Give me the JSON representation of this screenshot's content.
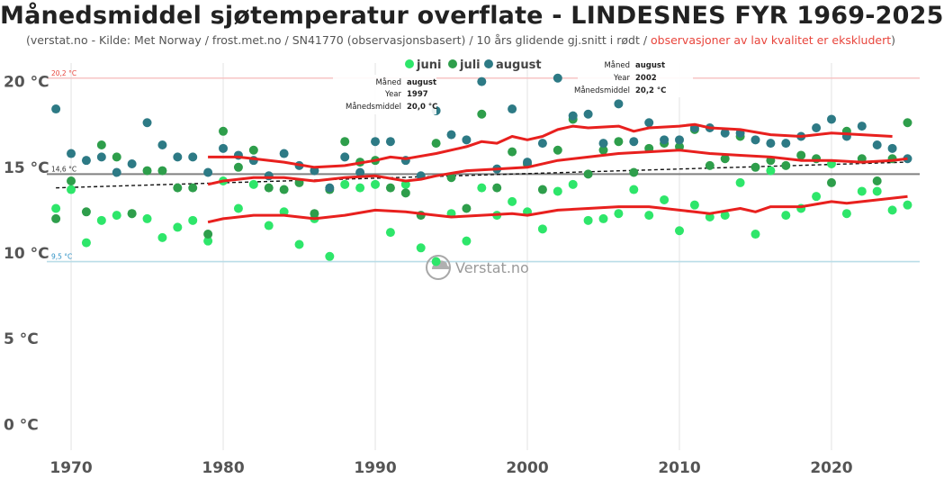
{
  "chart_data": {
    "type": "scatter",
    "title": "Månedsmiddel sjøtemperatur overflate - LINDESNES FYR 1969-2025",
    "subtitle": {
      "main": "(verstat.no - Kilde: Met Norway / frost.met.no / SN41770 (observasjonsbasert) / 10 års glidende gj.snitt i rødt / ",
      "warning": "observasjoner av lav kvalitet er ekskludert",
      "end": ")"
    },
    "xlim": [
      1968.4,
      2025.8
    ],
    "ylim": [
      -1.5,
      21.5
    ],
    "xticks": [
      1970,
      1980,
      1990,
      2000,
      2010,
      2020
    ],
    "yticks": [
      {
        "value": 0,
        "label": "0 °C"
      },
      {
        "value": 5,
        "label": "5 °C"
      },
      {
        "value": 10,
        "label": "10 °C"
      },
      {
        "value": 15,
        "label": "15 °C"
      },
      {
        "value": 20,
        "label": "20 °C"
      }
    ],
    "reference_lines": [
      {
        "value": 20.2,
        "label": "20,2 °C",
        "color": "#f7c4c4",
        "text_color": "#e8453c"
      },
      {
        "value": 14.6,
        "label": "14,6 °C",
        "color": "#808080",
        "text_color": "#333333"
      },
      {
        "value": 9.5,
        "label": "9,5 °C",
        "color": "#b9dde7",
        "text_color": "#2a8fc4"
      }
    ],
    "legend": [
      "juni",
      "juli",
      "august"
    ],
    "series": [
      {
        "name": "juni",
        "color": "#2ee66a",
        "points": [
          [
            1969,
            12.6
          ],
          [
            1970,
            13.7
          ],
          [
            1971,
            10.6
          ],
          [
            1972,
            11.9
          ],
          [
            1973,
            12.2
          ],
          [
            1974,
            12.3
          ],
          [
            1975,
            12.0
          ],
          [
            1976,
            10.9
          ],
          [
            1977,
            11.5
          ],
          [
            1978,
            11.9
          ],
          [
            1979,
            10.7
          ],
          [
            1980,
            14.2
          ],
          [
            1981,
            12.6
          ],
          [
            1982,
            14.0
          ],
          [
            1983,
            11.6
          ],
          [
            1984,
            12.4
          ],
          [
            1985,
            10.5
          ],
          [
            1986,
            12.0
          ],
          [
            1987,
            9.8
          ],
          [
            1988,
            14.0
          ],
          [
            1989,
            13.8
          ],
          [
            1990,
            14.0
          ],
          [
            1991,
            11.2
          ],
          [
            1992,
            14.0
          ],
          [
            1993,
            10.3
          ],
          [
            1994,
            9.5
          ],
          [
            1995,
            12.3
          ],
          [
            1996,
            10.7
          ],
          [
            1997,
            13.8
          ],
          [
            1998,
            12.2
          ],
          [
            1999,
            13.0
          ],
          [
            2000,
            12.4
          ],
          [
            2001,
            11.4
          ],
          [
            2002,
            13.6
          ],
          [
            2003,
            14.0
          ],
          [
            2004,
            11.9
          ],
          [
            2005,
            12.0
          ],
          [
            2006,
            12.3
          ],
          [
            2007,
            13.7
          ],
          [
            2008,
            12.2
          ],
          [
            2009,
            13.1
          ],
          [
            2010,
            11.3
          ],
          [
            2011,
            12.8
          ],
          [
            2012,
            12.1
          ],
          [
            2013,
            12.2
          ],
          [
            2014,
            14.1
          ],
          [
            2015,
            11.1
          ],
          [
            2016,
            14.8
          ],
          [
            2017,
            12.2
          ],
          [
            2018,
            12.6
          ],
          [
            2019,
            13.3
          ],
          [
            2020,
            15.2
          ],
          [
            2021,
            12.3
          ],
          [
            2022,
            13.6
          ],
          [
            2023,
            13.6
          ],
          [
            2024,
            12.5
          ],
          [
            2025,
            12.8
          ]
        ]
      },
      {
        "name": "juli",
        "color": "#2e9e4b",
        "points": [
          [
            1969,
            12.0
          ],
          [
            1970,
            14.2
          ],
          [
            1971,
            12.4
          ],
          [
            1972,
            16.3
          ],
          [
            1973,
            15.6
          ],
          [
            1974,
            12.3
          ],
          [
            1975,
            14.8
          ],
          [
            1976,
            14.8
          ],
          [
            1977,
            13.8
          ],
          [
            1978,
            13.8
          ],
          [
            1979,
            11.1
          ],
          [
            1980,
            17.1
          ],
          [
            1981,
            15.0
          ],
          [
            1982,
            16.0
          ],
          [
            1983,
            13.8
          ],
          [
            1984,
            13.7
          ],
          [
            1985,
            14.1
          ],
          [
            1986,
            12.3
          ],
          [
            1987,
            13.7
          ],
          [
            1988,
            16.5
          ],
          [
            1989,
            15.3
          ],
          [
            1990,
            15.4
          ],
          [
            1991,
            13.8
          ],
          [
            1992,
            13.5
          ],
          [
            1993,
            12.2
          ],
          [
            1994,
            16.4
          ],
          [
            1995,
            14.4
          ],
          [
            1996,
            12.6
          ],
          [
            1997,
            18.1
          ],
          [
            1998,
            13.8
          ],
          [
            1999,
            15.9
          ],
          [
            2000,
            15.2
          ],
          [
            2001,
            13.7
          ],
          [
            2002,
            16.0
          ],
          [
            2003,
            17.8
          ],
          [
            2004,
            14.6
          ],
          [
            2005,
            16.0
          ],
          [
            2006,
            16.5
          ],
          [
            2007,
            14.7
          ],
          [
            2008,
            16.1
          ],
          [
            2009,
            16.4
          ],
          [
            2010,
            16.2
          ],
          [
            2011,
            17.2
          ],
          [
            2012,
            15.1
          ],
          [
            2013,
            15.5
          ],
          [
            2014,
            16.8
          ],
          [
            2015,
            15.0
          ],
          [
            2016,
            15.4
          ],
          [
            2017,
            15.1
          ],
          [
            2018,
            15.7
          ],
          [
            2019,
            15.5
          ],
          [
            2020,
            14.1
          ],
          [
            2021,
            17.1
          ],
          [
            2022,
            15.5
          ],
          [
            2023,
            14.2
          ],
          [
            2024,
            15.5
          ],
          [
            2025,
            17.6
          ]
        ]
      },
      {
        "name": "august",
        "color": "#2d7a85",
        "points": [
          [
            1969,
            18.4
          ],
          [
            1970,
            15.8
          ],
          [
            1971,
            15.4
          ],
          [
            1972,
            15.6
          ],
          [
            1973,
            14.7
          ],
          [
            1974,
            15.2
          ],
          [
            1975,
            17.6
          ],
          [
            1976,
            16.3
          ],
          [
            1977,
            15.6
          ],
          [
            1978,
            15.6
          ],
          [
            1979,
            14.7
          ],
          [
            1980,
            16.1
          ],
          [
            1981,
            15.7
          ],
          [
            1982,
            15.4
          ],
          [
            1983,
            14.5
          ],
          [
            1984,
            15.8
          ],
          [
            1985,
            15.1
          ],
          [
            1986,
            14.8
          ],
          [
            1987,
            13.8
          ],
          [
            1988,
            15.6
          ],
          [
            1989,
            14.7
          ],
          [
            1990,
            16.5
          ],
          [
            1991,
            16.5
          ],
          [
            1992,
            15.4
          ],
          [
            1993,
            14.5
          ],
          [
            1994,
            18.3
          ],
          [
            1995,
            16.9
          ],
          [
            1996,
            16.6
          ],
          [
            1997,
            20.0
          ],
          [
            1998,
            14.9
          ],
          [
            1999,
            18.4
          ],
          [
            2000,
            15.3
          ],
          [
            2001,
            16.4
          ],
          [
            2002,
            20.2
          ],
          [
            2003,
            18.0
          ],
          [
            2004,
            18.1
          ],
          [
            2005,
            16.4
          ],
          [
            2006,
            18.7
          ],
          [
            2007,
            16.5
          ],
          [
            2008,
            17.6
          ],
          [
            2009,
            16.6
          ],
          [
            2010,
            16.6
          ],
          [
            2011,
            17.3
          ],
          [
            2012,
            17.3
          ],
          [
            2013,
            17.0
          ],
          [
            2014,
            17.0
          ],
          [
            2015,
            16.6
          ],
          [
            2016,
            16.4
          ],
          [
            2017,
            16.4
          ],
          [
            2018,
            16.8
          ],
          [
            2019,
            17.3
          ],
          [
            2020,
            17.8
          ],
          [
            2021,
            16.8
          ],
          [
            2022,
            17.4
          ],
          [
            2023,
            16.3
          ],
          [
            2024,
            16.1
          ],
          [
            2025,
            15.5
          ]
        ]
      }
    ],
    "moving_averages": [
      {
        "name": "juni",
        "color": "#e8201e",
        "points": [
          [
            1979,
            11.8
          ],
          [
            1980,
            12.0
          ],
          [
            1982,
            12.2
          ],
          [
            1984,
            12.2
          ],
          [
            1986,
            12.0
          ],
          [
            1988,
            12.2
          ],
          [
            1990,
            12.5
          ],
          [
            1992,
            12.4
          ],
          [
            1993,
            12.3
          ],
          [
            1995,
            12.1
          ],
          [
            1997,
            12.2
          ],
          [
            1999,
            12.3
          ],
          [
            2000,
            12.2
          ],
          [
            2002,
            12.5
          ],
          [
            2004,
            12.6
          ],
          [
            2006,
            12.7
          ],
          [
            2008,
            12.7
          ],
          [
            2010,
            12.5
          ],
          [
            2011,
            12.4
          ],
          [
            2012,
            12.3
          ],
          [
            2014,
            12.6
          ],
          [
            2015,
            12.4
          ],
          [
            2016,
            12.7
          ],
          [
            2018,
            12.7
          ],
          [
            2020,
            13.0
          ],
          [
            2021,
            12.9
          ],
          [
            2022,
            13.0
          ],
          [
            2024,
            13.2
          ],
          [
            2025,
            13.3
          ]
        ]
      },
      {
        "name": "juli",
        "color": "#e8201e",
        "points": [
          [
            1979,
            14.0
          ],
          [
            1980,
            14.2
          ],
          [
            1981,
            14.3
          ],
          [
            1982,
            14.4
          ],
          [
            1984,
            14.4
          ],
          [
            1985,
            14.3
          ],
          [
            1986,
            14.2
          ],
          [
            1988,
            14.4
          ],
          [
            1990,
            14.5
          ],
          [
            1992,
            14.2
          ],
          [
            1993,
            14.3
          ],
          [
            1994,
            14.5
          ],
          [
            1996,
            14.8
          ],
          [
            1998,
            14.9
          ],
          [
            2000,
            15.0
          ],
          [
            2002,
            15.4
          ],
          [
            2004,
            15.6
          ],
          [
            2006,
            15.8
          ],
          [
            2008,
            15.9
          ],
          [
            2010,
            16.0
          ],
          [
            2012,
            15.8
          ],
          [
            2014,
            15.7
          ],
          [
            2016,
            15.6
          ],
          [
            2018,
            15.4
          ],
          [
            2020,
            15.4
          ],
          [
            2022,
            15.3
          ],
          [
            2024,
            15.4
          ],
          [
            2025,
            15.5
          ]
        ]
      },
      {
        "name": "august",
        "color": "#e8201e",
        "points": [
          [
            1979,
            15.6
          ],
          [
            1980,
            15.6
          ],
          [
            1981,
            15.6
          ],
          [
            1982,
            15.5
          ],
          [
            1984,
            15.3
          ],
          [
            1986,
            15.0
          ],
          [
            1988,
            15.1
          ],
          [
            1990,
            15.4
          ],
          [
            1991,
            15.6
          ],
          [
            1992,
            15.5
          ],
          [
            1994,
            15.8
          ],
          [
            1996,
            16.2
          ],
          [
            1997,
            16.5
          ],
          [
            1998,
            16.4
          ],
          [
            1999,
            16.8
          ],
          [
            2000,
            16.6
          ],
          [
            2001,
            16.8
          ],
          [
            2002,
            17.2
          ],
          [
            2003,
            17.4
          ],
          [
            2004,
            17.3
          ],
          [
            2006,
            17.4
          ],
          [
            2007,
            17.1
          ],
          [
            2008,
            17.3
          ],
          [
            2010,
            17.4
          ],
          [
            2011,
            17.5
          ],
          [
            2012,
            17.3
          ],
          [
            2014,
            17.2
          ],
          [
            2016,
            16.9
          ],
          [
            2018,
            16.8
          ],
          [
            2020,
            17.0
          ],
          [
            2022,
            16.9
          ],
          [
            2024,
            16.8
          ]
        ]
      }
    ],
    "trend_line": {
      "color": "#111111",
      "points": [
        [
          1969,
          13.8
        ],
        [
          2025,
          15.3
        ]
      ]
    },
    "tooltips": [
      {
        "rows": [
          [
            "Måned",
            "august"
          ],
          [
            "Year",
            "1997"
          ],
          [
            "Månedsmiddel",
            "20,0 °C"
          ]
        ]
      },
      {
        "rows": [
          [
            "Måned",
            "august"
          ],
          [
            "Year",
            "2002"
          ],
          [
            "Månedsmiddel",
            "20,2 °C"
          ]
        ]
      }
    ],
    "watermark": "Verstat.no"
  }
}
